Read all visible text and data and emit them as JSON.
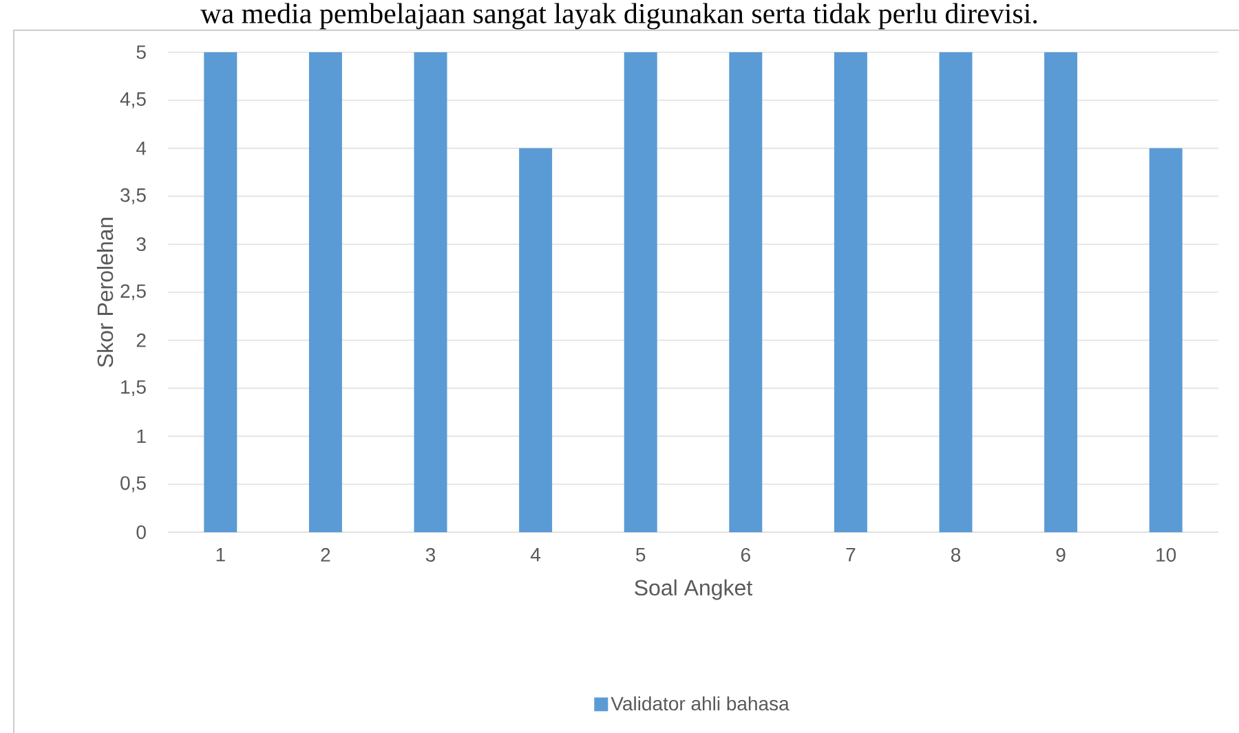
{
  "chart_data": {
    "type": "bar",
    "annotations": [
      "wa media pembelajaan sangat layak digunakan serta tidak perlu direvisi."
    ],
    "xlabel": "Soal Angket",
    "ylabel": "Skor Perolehan",
    "categories": [
      "1",
      "2",
      "3",
      "4",
      "5",
      "6",
      "7",
      "8",
      "9",
      "10"
    ],
    "series": [
      {
        "name": "Validator ahli bahasa",
        "color": "#5b9bd5",
        "values": [
          5,
          5,
          5,
          4,
          5,
          5,
          5,
          5,
          5,
          4
        ]
      }
    ],
    "ylim": [
      0,
      5
    ],
    "yticks": [
      0,
      {
        "value": 0.5,
        "label": "0,5"
      },
      1,
      {
        "value": 1.5,
        "label": "1,5"
      },
      2,
      {
        "value": 2.5,
        "label": "2,5"
      },
      3,
      {
        "value": 3.5,
        "label": "3,5"
      },
      4,
      {
        "value": 4.5,
        "label": "4,5"
      },
      5
    ],
    "grid": "y",
    "legend": "bottom"
  }
}
